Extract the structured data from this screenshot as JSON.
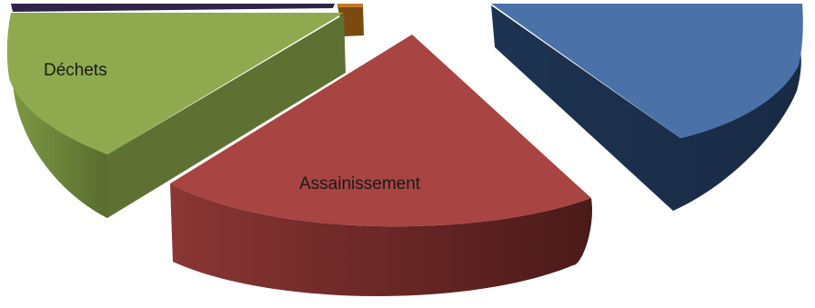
{
  "chart_data": {
    "type": "pie",
    "style": "3d-exploded",
    "title": "",
    "labels_visible": [
      "Déchets",
      "Assainissement"
    ],
    "slices": [
      {
        "label": "Déchets",
        "color": "#8FAA4E",
        "side_color": "#627434"
      },
      {
        "label": "Assainissement",
        "color": "#A84442",
        "side_color": "#5E201E"
      },
      {
        "label": "",
        "color": "#4A72A8",
        "side_color": "#1B2D4A"
      },
      {
        "label": "",
        "color": "#2E2447",
        "side_color": "#1E1830"
      },
      {
        "label": "",
        "color": "#C07A28",
        "side_color": "#7A4A10"
      }
    ]
  }
}
